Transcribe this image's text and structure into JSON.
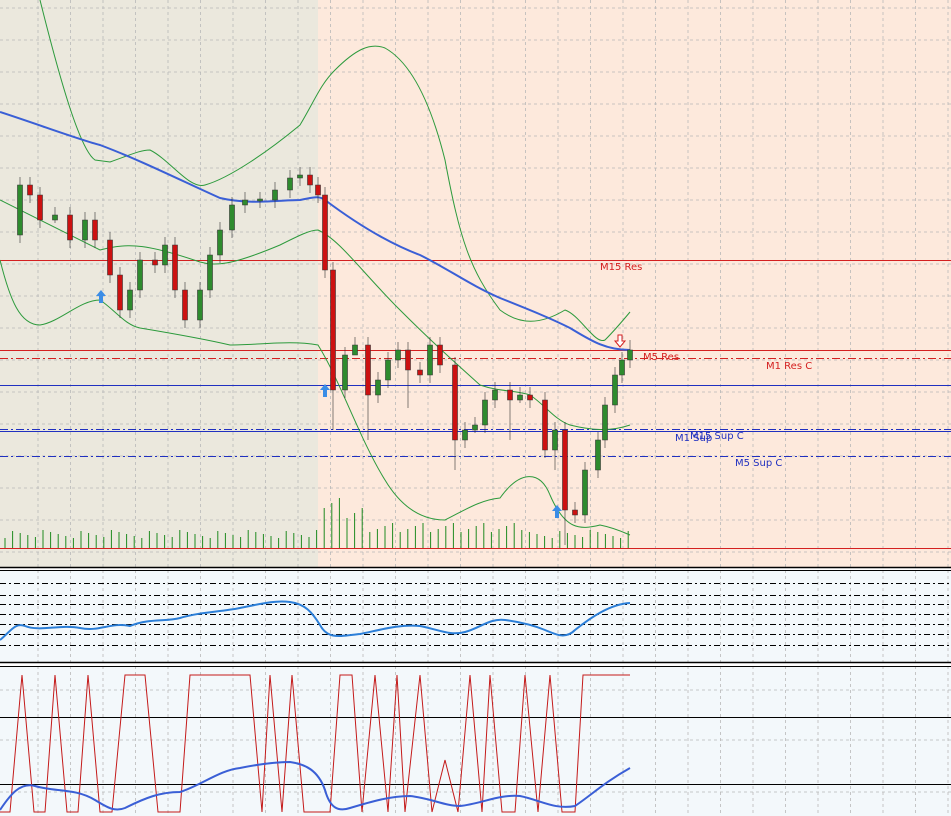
{
  "levels": [
    {
      "label": "M15 Res"
    },
    {
      "label": "M5 Res"
    },
    {
      "label": "M1 Res C"
    },
    {
      "label": "M15 Sup C"
    },
    {
      "label": "M1 Sup"
    },
    {
      "label": "M5 Sup C"
    }
  ]
}
